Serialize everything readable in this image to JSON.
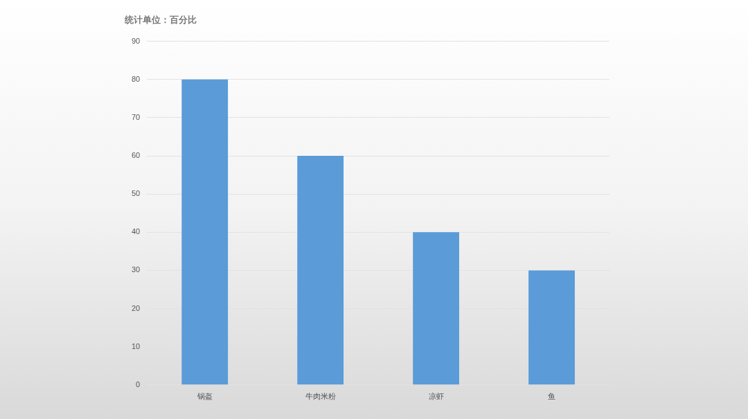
{
  "chart_data": {
    "type": "bar",
    "title": "统计单位：百分比",
    "categories": [
      "锅盔",
      "牛肉米粉",
      "凉虾",
      "鱼"
    ],
    "values": [
      80,
      60,
      40,
      30
    ],
    "color": "#5a9bd8",
    "ylim": [
      0,
      90
    ],
    "yticks": [
      0,
      10,
      20,
      30,
      40,
      50,
      60,
      70,
      80,
      90
    ],
    "grid": "y",
    "legend": false
  }
}
